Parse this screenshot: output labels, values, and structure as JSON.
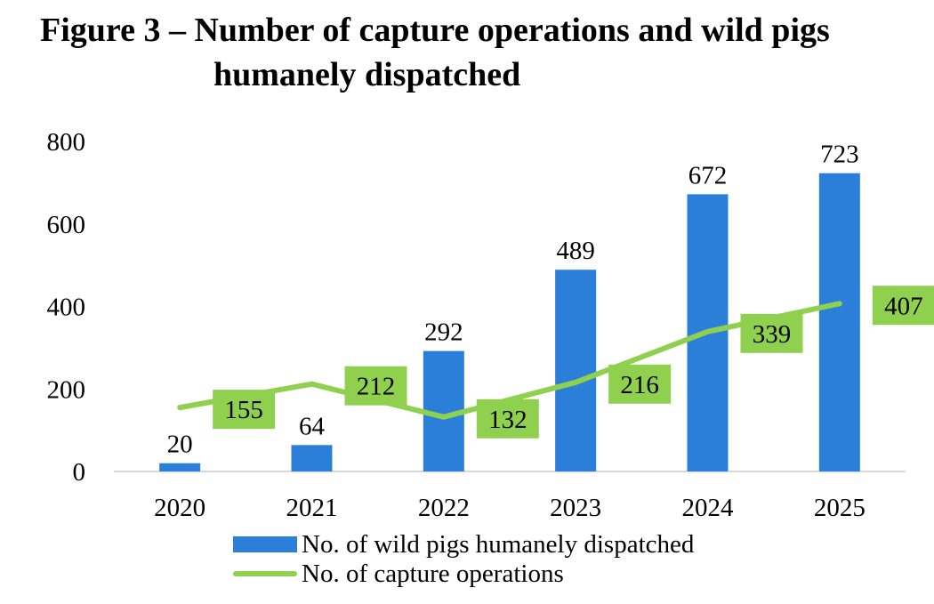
{
  "chart_data": {
    "type": "bar",
    "title_lines": [
      "Figure 3 – Number of capture operations and wild pigs",
      "humanely dispatched"
    ],
    "categories": [
      "2020",
      "2021",
      "2022",
      "2023",
      "2024",
      "2025"
    ],
    "series": [
      {
        "name": "No. of wild pigs humanely dispatched",
        "type": "bar",
        "color": "#2b7fd8",
        "values": [
          20,
          64,
          292,
          489,
          672,
          723
        ]
      },
      {
        "name": "No. of capture operations",
        "type": "line",
        "color": "#8fd14f",
        "values": [
          155,
          212,
          132,
          216,
          339,
          407
        ]
      }
    ],
    "y_ticks": [
      0,
      200,
      400,
      600,
      800
    ],
    "ylim": [
      0,
      800
    ],
    "grid": false,
    "legend_position": "bottom"
  }
}
